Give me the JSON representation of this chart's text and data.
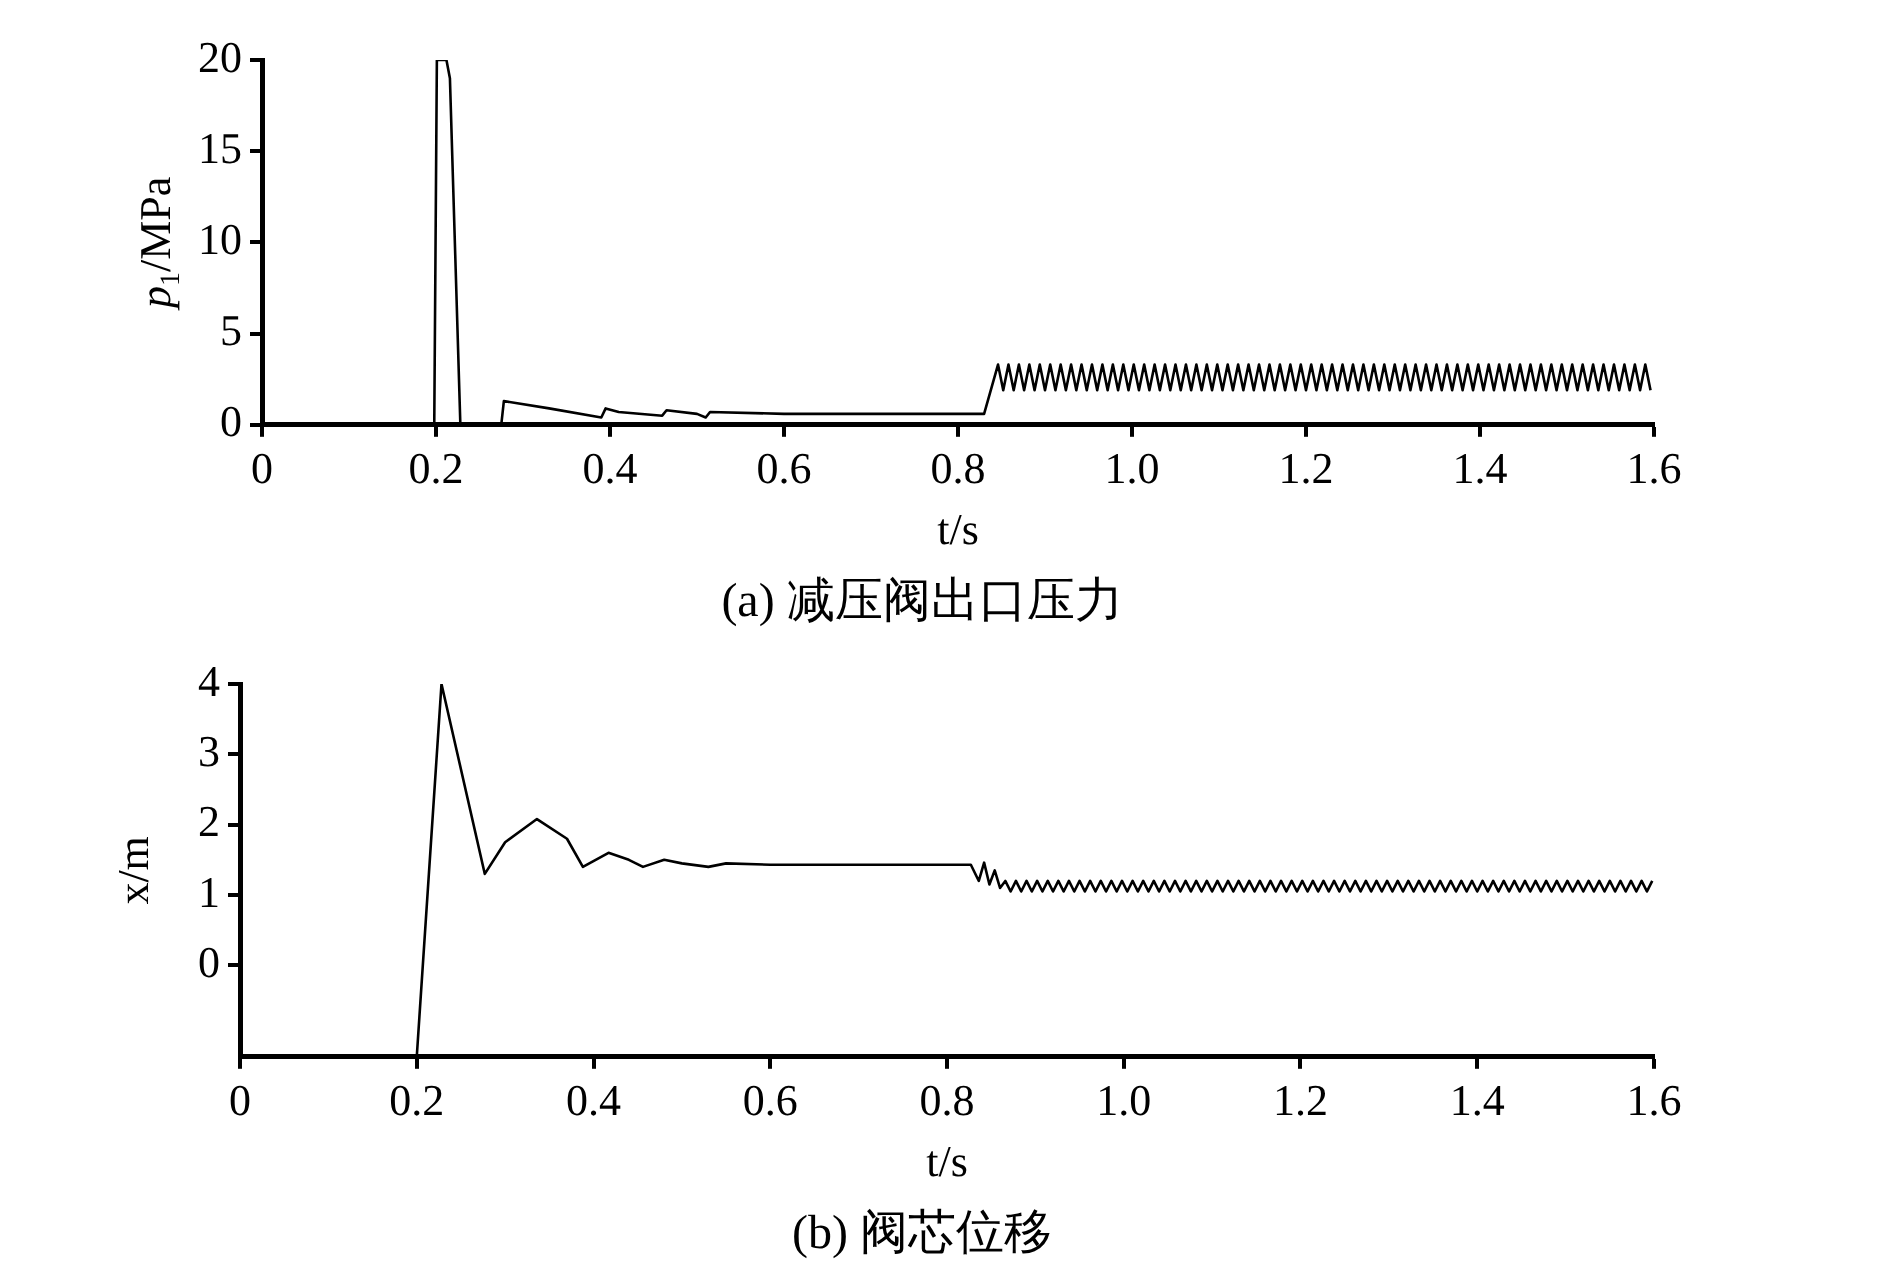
{
  "chart_data": [
    {
      "type": "line",
      "title": "(a) 减压阀出口压力",
      "xlabel": "t/s",
      "ylabel": "p$_{1}$/MPa",
      "xlim": [
        0,
        1.6
      ],
      "xticks": [
        0,
        0.2,
        0.4,
        0.6,
        0.8,
        {
          "value": 1,
          "label": "1.0"
        },
        1.2,
        1.4,
        1.6
      ],
      "ylim": [
        0,
        20
      ],
      "yticks": [
        0,
        5,
        10,
        15,
        20
      ],
      "marker": "none",
      "line_style": "solid",
      "series": [
        {
          "color": "#000000",
          "x": [
            0,
            0.198,
            0.201,
            0.212,
            0.216,
            0.228,
            0.275,
            0.278,
            0.33,
            0.39,
            0.395,
            0.41,
            0.46,
            0.465,
            0.5,
            0.51,
            0.515,
            0.6,
            0.7,
            0.822,
            0.83,
            0.846,
            0.852,
            0.858,
            0.864,
            0.87,
            0.876,
            0.882,
            0.888,
            0.894,
            0.9,
            0.906,
            0.912,
            0.918,
            0.924,
            0.93,
            0.936,
            0.942,
            0.948,
            0.954,
            0.96,
            0.966,
            0.972,
            0.978,
            0.984,
            0.99,
            0.996,
            1.002,
            1.008,
            1.014,
            1.02,
            1.026,
            1.032,
            1.038,
            1.044,
            1.05,
            1.056,
            1.062,
            1.068,
            1.074,
            1.08,
            1.086,
            1.092,
            1.098,
            1.104,
            1.11,
            1.116,
            1.122,
            1.128,
            1.134,
            1.14,
            1.146,
            1.152,
            1.158,
            1.164,
            1.17,
            1.176,
            1.182,
            1.188,
            1.194,
            1.2,
            1.206,
            1.212,
            1.218,
            1.224,
            1.23,
            1.236,
            1.242,
            1.248,
            1.254,
            1.26,
            1.266,
            1.272,
            1.278,
            1.284,
            1.29,
            1.296,
            1.302,
            1.308,
            1.314,
            1.32,
            1.326,
            1.332,
            1.338,
            1.344,
            1.35,
            1.356,
            1.362,
            1.368,
            1.374,
            1.38,
            1.386,
            1.392,
            1.398,
            1.404,
            1.41,
            1.416,
            1.422,
            1.428,
            1.434,
            1.44,
            1.446,
            1.452,
            1.458,
            1.464,
            1.47,
            1.476,
            1.482,
            1.488,
            1.494,
            1.5,
            1.506,
            1.512,
            1.518,
            1.524,
            1.53,
            1.536,
            1.542,
            1.548,
            1.554,
            1.56,
            1.566,
            1.572,
            1.578,
            1.584,
            1.59,
            1.596
          ],
          "values": [
            0,
            0,
            20,
            20,
            19,
            0,
            0,
            1.3,
            0.9,
            0.4,
            0.9,
            0.7,
            0.5,
            0.8,
            0.6,
            0.4,
            0.7,
            0.6,
            0.6,
            0.6,
            0.6,
            3.3,
            1.9,
            3.3,
            1.9,
            3.3,
            1.9,
            3.3,
            1.9,
            3.3,
            1.9,
            3.3,
            1.9,
            3.3,
            1.9,
            3.3,
            1.9,
            3.3,
            1.9,
            3.3,
            1.9,
            3.3,
            1.9,
            3.3,
            1.9,
            3.3,
            1.9,
            3.3,
            1.9,
            3.3,
            1.9,
            3.3,
            1.9,
            3.3,
            1.9,
            3.3,
            1.9,
            3.3,
            1.9,
            3.3,
            1.9,
            3.3,
            1.9,
            3.3,
            1.9,
            3.3,
            1.9,
            3.3,
            1.9,
            3.3,
            1.9,
            3.3,
            1.9,
            3.3,
            1.9,
            3.3,
            1.9,
            3.3,
            1.9,
            3.3,
            1.9,
            3.3,
            1.9,
            3.3,
            1.9,
            3.3,
            1.9,
            3.3,
            1.9,
            3.3,
            1.9,
            3.3,
            1.9,
            3.3,
            1.9,
            3.3,
            1.9,
            3.3,
            1.9,
            3.3,
            1.9,
            3.3,
            1.9,
            3.3,
            1.9,
            3.3,
            1.9,
            3.3,
            1.9,
            3.3,
            1.9,
            3.3,
            1.9,
            3.3,
            1.9,
            3.3,
            1.9,
            3.3,
            1.9,
            3.3,
            1.9,
            3.3,
            1.9,
            3.3,
            1.9,
            3.3,
            1.9,
            3.3,
            1.9,
            3.3,
            1.9,
            3.3,
            1.9,
            3.3,
            1.9,
            3.3,
            1.9,
            3.3,
            1.9,
            3.3,
            1.9,
            3.3,
            1.9,
            3.3,
            1.9,
            3.3,
            1.9
          ]
        }
      ]
    },
    {
      "type": "line",
      "title": "(b) 阀芯位移",
      "xlabel": "t/s",
      "ylabel": "x/m",
      "xlim": [
        0,
        1.6
      ],
      "xticks": [
        0,
        0.2,
        0.4,
        0.6,
        0.8,
        {
          "value": 1,
          "label": "1.0"
        },
        1.2,
        1.4,
        1.6
      ],
      "ylim": [
        -1.3,
        4
      ],
      "yticks": [
        0,
        1,
        2,
        3,
        4
      ],
      "marker": "none",
      "line_style": "solid",
      "series": [
        {
          "color": "#000000",
          "x": [
            0.2,
            0.228,
            0.277,
            0.3,
            0.336,
            0.37,
            0.388,
            0.417,
            0.44,
            0.456,
            0.48,
            0.5,
            0.53,
            0.55,
            0.6,
            0.827,
            0.836,
            0.842,
            0.848,
            0.854,
            0.86,
            0.866,
            0.872,
            0.878,
            0.884,
            0.89,
            0.896,
            0.902,
            0.908,
            0.914,
            0.92,
            0.926,
            0.932,
            0.938,
            0.944,
            0.95,
            0.956,
            0.962,
            0.968,
            0.974,
            0.98,
            0.986,
            0.992,
            0.998,
            1.004,
            1.01,
            1.016,
            1.022,
            1.028,
            1.034,
            1.04,
            1.046,
            1.052,
            1.058,
            1.064,
            1.07,
            1.076,
            1.082,
            1.088,
            1.094,
            1.1,
            1.106,
            1.112,
            1.118,
            1.124,
            1.13,
            1.136,
            1.142,
            1.148,
            1.154,
            1.16,
            1.166,
            1.172,
            1.178,
            1.184,
            1.19,
            1.196,
            1.202,
            1.208,
            1.214,
            1.22,
            1.226,
            1.232,
            1.238,
            1.244,
            1.25,
            1.256,
            1.262,
            1.268,
            1.274,
            1.28,
            1.286,
            1.292,
            1.298,
            1.304,
            1.31,
            1.316,
            1.322,
            1.328,
            1.334,
            1.34,
            1.346,
            1.352,
            1.358,
            1.364,
            1.37,
            1.376,
            1.382,
            1.388,
            1.394,
            1.4,
            1.406,
            1.412,
            1.418,
            1.424,
            1.43,
            1.436,
            1.442,
            1.448,
            1.454,
            1.46,
            1.466,
            1.472,
            1.478,
            1.484,
            1.49,
            1.496,
            1.502,
            1.508,
            1.514,
            1.52,
            1.526,
            1.532,
            1.538,
            1.544,
            1.55,
            1.556,
            1.562,
            1.568,
            1.574,
            1.58,
            1.586,
            1.592,
            1.598
          ],
          "values": [
            -1.3,
            4,
            1.3,
            1.75,
            2.08,
            1.8,
            1.4,
            1.6,
            1.5,
            1.4,
            1.5,
            1.45,
            1.4,
            1.45,
            1.43,
            1.43,
            1.2,
            1.46,
            1.15,
            1.35,
            1.1,
            1.2,
            1.05,
            1.2,
            1.05,
            1.2,
            1.05,
            1.2,
            1.05,
            1.2,
            1.05,
            1.2,
            1.05,
            1.2,
            1.05,
            1.2,
            1.05,
            1.2,
            1.05,
            1.2,
            1.05,
            1.2,
            1.05,
            1.2,
            1.05,
            1.2,
            1.05,
            1.2,
            1.05,
            1.2,
            1.05,
            1.2,
            1.05,
            1.2,
            1.05,
            1.2,
            1.05,
            1.2,
            1.05,
            1.2,
            1.05,
            1.2,
            1.05,
            1.2,
            1.05,
            1.2,
            1.05,
            1.2,
            1.05,
            1.2,
            1.05,
            1.2,
            1.05,
            1.2,
            1.05,
            1.2,
            1.05,
            1.2,
            1.05,
            1.2,
            1.05,
            1.2,
            1.05,
            1.2,
            1.05,
            1.2,
            1.05,
            1.2,
            1.05,
            1.2,
            1.05,
            1.2,
            1.05,
            1.2,
            1.05,
            1.2,
            1.05,
            1.2,
            1.05,
            1.2,
            1.05,
            1.2,
            1.05,
            1.2,
            1.05,
            1.2,
            1.05,
            1.2,
            1.05,
            1.2,
            1.05,
            1.2,
            1.05,
            1.2,
            1.05,
            1.2,
            1.05,
            1.2,
            1.05,
            1.2,
            1.05,
            1.2,
            1.05,
            1.2,
            1.05,
            1.2,
            1.05,
            1.2,
            1.05,
            1.2,
            1.05,
            1.2,
            1.05,
            1.2,
            1.05,
            1.2,
            1.05,
            1.2,
            1.05,
            1.2,
            1.05,
            1.2,
            1.05,
            1.2
          ]
        }
      ]
    }
  ]
}
